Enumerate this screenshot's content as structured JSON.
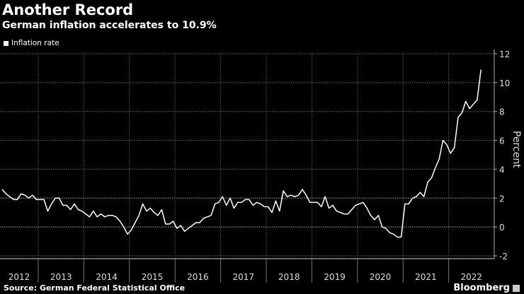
{
  "header": {
    "title": "Another Record",
    "subtitle": "German inflation accelerates to 10.9%"
  },
  "footer": {
    "source": "Source: German Federal Statistical Office",
    "brand": "Bloomberg"
  },
  "colors": {
    "background": "#000000",
    "line": "#ffffff",
    "grid": "#777777"
  },
  "chart_data": {
    "type": "line",
    "title": "Another Record",
    "subtitle": "German inflation accelerates to 10.9%",
    "xlabel": "",
    "ylabel": "Percent",
    "ylim": [
      -2,
      12
    ],
    "yticks": [
      -2,
      0,
      2,
      4,
      6,
      8,
      10,
      12
    ],
    "ytick_labels": [
      "-2",
      "0",
      "2",
      "4",
      "6",
      "8",
      "10",
      "12"
    ],
    "xtick_labels": [
      "2012",
      "2013",
      "2014",
      "2015",
      "2016",
      "2017",
      "2018",
      "2019",
      "2020",
      "2021",
      "2022"
    ],
    "grid": true,
    "legend": {
      "placement": "top-left",
      "entries": [
        "Inflation rate"
      ]
    },
    "last_point": {
      "date": "2022-09",
      "value": 10.9
    },
    "series": [
      {
        "name": "Inflation rate",
        "frequency": "monthly",
        "values": [
          2.6,
          2.3,
          2.1,
          1.9,
          1.9,
          2.3,
          2.2,
          2.0,
          2.2,
          1.9,
          1.9,
          1.9,
          1.1,
          1.6,
          2.0,
          2.0,
          1.5,
          1.5,
          1.2,
          1.6,
          1.2,
          1.1,
          0.9,
          0.7,
          1.1,
          0.7,
          0.9,
          0.7,
          0.8,
          0.8,
          0.7,
          0.4,
          0.0,
          -0.5,
          -0.2,
          0.3,
          0.8,
          1.6,
          1.1,
          1.3,
          1.0,
          0.8,
          1.2,
          0.2,
          0.2,
          0.4,
          -0.1,
          0.1,
          -0.3,
          -0.1,
          0.1,
          0.3,
          0.3,
          0.6,
          0.7,
          0.8,
          1.6,
          1.7,
          2.1,
          1.5,
          2.0,
          1.3,
          1.7,
          1.7,
          1.9,
          1.9,
          1.5,
          1.7,
          1.6,
          1.4,
          1.4,
          1.0,
          1.8,
          1.1,
          2.5,
          2.1,
          2.2,
          2.1,
          2.2,
          2.6,
          2.2,
          1.7,
          1.7,
          1.7,
          1.4,
          2.1,
          1.3,
          1.5,
          1.1,
          1.0,
          0.9,
          0.9,
          1.2,
          1.5,
          1.6,
          1.7,
          1.3,
          0.8,
          0.5,
          0.8,
          0.0,
          -0.1,
          -0.4,
          -0.5,
          -0.7,
          -0.7,
          1.6,
          1.6,
          2.0,
          2.1,
          2.4,
          2.1,
          3.1,
          3.4,
          4.1,
          4.7,
          6.0,
          5.7,
          5.1,
          5.5,
          7.6,
          7.9,
          8.7,
          8.2,
          8.5,
          8.8,
          10.9
        ]
      }
    ]
  }
}
